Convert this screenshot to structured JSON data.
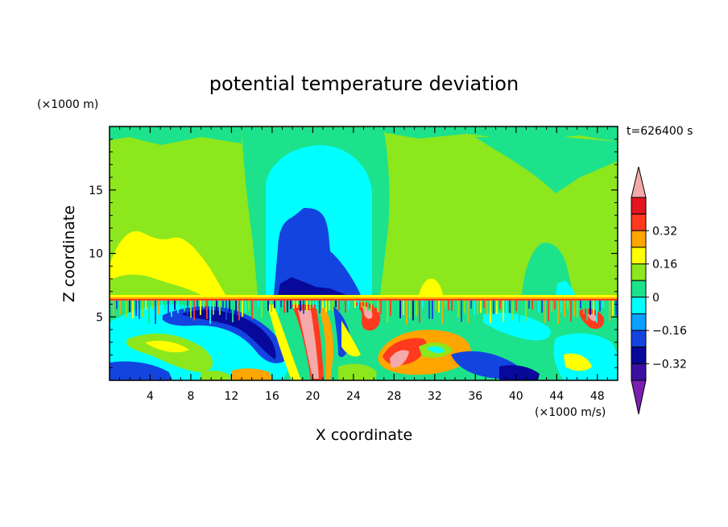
{
  "chart_data": {
    "type": "heatmap",
    "title": "potential temperature deviation",
    "xlabel": "X coordinate",
    "ylabel": "Z coordinate",
    "x_unit": "(×1000 m/s)",
    "y_unit": "(×1000 m)",
    "time_label": "t=626400 s",
    "xlim": [
      0,
      50
    ],
    "ylim": [
      0,
      20
    ],
    "x_ticks": [
      4,
      8,
      12,
      16,
      20,
      24,
      28,
      32,
      36,
      40,
      44,
      48
    ],
    "y_ticks": [
      5,
      10,
      15
    ],
    "colorbar": {
      "levels": [
        -0.48,
        -0.4,
        -0.32,
        -0.24,
        -0.16,
        -0.08,
        0,
        0.08,
        0.16,
        0.24,
        0.32,
        0.4
      ],
      "colors": [
        "#7a1fb0",
        "#3b0fa0",
        "#08089a",
        "#1444e0",
        "#0aa0ff",
        "#00ffff",
        "#1ce28c",
        "#8ce71c",
        "#ffff00",
        "#ffa500",
        "#ff3a1e",
        "#e3151e",
        "#f4aaaa"
      ],
      "labels": [
        {
          "value": 0.32,
          "text": "0.32"
        },
        {
          "value": 0.16,
          "text": "0.16"
        },
        {
          "value": 0,
          "text": "0"
        },
        {
          "value": -0.16,
          "text": "−0.16"
        },
        {
          "value": -0.32,
          "text": "−0.32"
        }
      ]
    }
  }
}
